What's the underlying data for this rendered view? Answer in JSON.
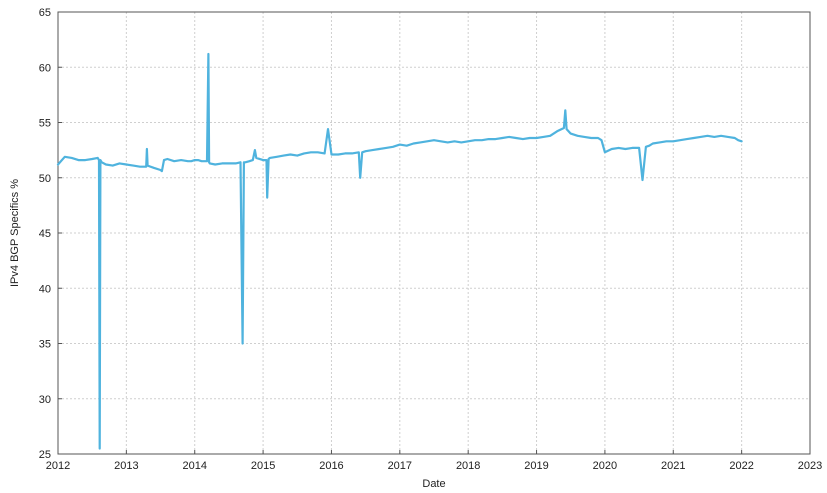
{
  "chart_data": {
    "type": "line",
    "title": "",
    "xlabel": "Date",
    "ylabel": "IPv4 BGP Specifics %",
    "xlim": [
      2012,
      2023
    ],
    "ylim": [
      25,
      65
    ],
    "x_ticks": [
      "2012",
      "2013",
      "2014",
      "2015",
      "2016",
      "2017",
      "2018",
      "2019",
      "2020",
      "2021",
      "2022",
      "2023"
    ],
    "y_ticks": [
      "25",
      "30",
      "35",
      "40",
      "45",
      "50",
      "55",
      "60",
      "65"
    ],
    "grid": true,
    "legend": "none",
    "colors": {
      "series": "#4fb3de",
      "grid": "#cfcfcf",
      "frame": "#555555"
    },
    "series": [
      {
        "x": [
          2012.0,
          2012.1,
          2012.2,
          2012.3,
          2012.4,
          2012.5,
          2012.58,
          2012.6,
          2012.61,
          2012.62,
          2012.64,
          2012.7,
          2012.8,
          2012.9,
          2013.0,
          2013.1,
          2013.2,
          2013.29,
          2013.3,
          2013.31,
          2013.4,
          2013.5,
          2013.52,
          2013.55,
          2013.6,
          2013.7,
          2013.8,
          2013.9,
          2013.95,
          2014.0,
          2014.05,
          2014.1,
          2014.18,
          2014.2,
          2014.21,
          2014.22,
          2014.3,
          2014.4,
          2014.5,
          2014.6,
          2014.67,
          2014.7,
          2014.72,
          2014.74,
          2014.8,
          2014.85,
          2014.88,
          2014.9,
          2015.0,
          2015.05,
          2015.06,
          2015.08,
          2015.1,
          2015.2,
          2015.3,
          2015.4,
          2015.5,
          2015.6,
          2015.7,
          2015.8,
          2015.9,
          2015.95,
          2016.0,
          2016.1,
          2016.2,
          2016.3,
          2016.4,
          2016.42,
          2016.45,
          2016.5,
          2016.6,
          2016.7,
          2016.8,
          2016.9,
          2017.0,
          2017.1,
          2017.2,
          2017.3,
          2017.4,
          2017.5,
          2017.6,
          2017.7,
          2017.8,
          2017.9,
          2018.0,
          2018.1,
          2018.2,
          2018.3,
          2018.4,
          2018.5,
          2018.6,
          2018.7,
          2018.8,
          2018.9,
          2019.0,
          2019.1,
          2019.2,
          2019.3,
          2019.4,
          2019.42,
          2019.44,
          2019.5,
          2019.6,
          2019.7,
          2019.8,
          2019.9,
          2019.95,
          2020.0,
          2020.1,
          2020.2,
          2020.3,
          2020.4,
          2020.5,
          2020.55,
          2020.6,
          2020.65,
          2020.7,
          2020.8,
          2020.9,
          2021.0,
          2021.1,
          2021.2,
          2021.3,
          2021.4,
          2021.5,
          2021.6,
          2021.7,
          2021.8,
          2021.9,
          2021.95,
          2022.0
        ],
        "y": [
          51.2,
          51.9,
          51.8,
          51.6,
          51.6,
          51.7,
          51.8,
          51.6,
          25.5,
          51.6,
          51.4,
          51.2,
          51.1,
          51.3,
          51.2,
          51.1,
          51.0,
          51.0,
          52.6,
          51.1,
          50.9,
          50.7,
          50.6,
          51.6,
          51.7,
          51.5,
          51.6,
          51.5,
          51.5,
          51.6,
          51.6,
          51.5,
          51.5,
          61.2,
          51.4,
          51.3,
          51.2,
          51.3,
          51.3,
          51.3,
          51.4,
          35.0,
          51.4,
          51.4,
          51.5,
          51.6,
          52.5,
          51.8,
          51.6,
          51.6,
          48.2,
          51.7,
          51.8,
          51.9,
          52.0,
          52.1,
          52.0,
          52.2,
          52.3,
          52.3,
          52.2,
          54.4,
          52.1,
          52.1,
          52.2,
          52.2,
          52.3,
          50.0,
          52.3,
          52.4,
          52.5,
          52.6,
          52.7,
          52.8,
          53.0,
          52.9,
          53.1,
          53.2,
          53.3,
          53.4,
          53.3,
          53.2,
          53.3,
          53.2,
          53.3,
          53.4,
          53.4,
          53.5,
          53.5,
          53.6,
          53.7,
          53.6,
          53.5,
          53.6,
          53.6,
          53.7,
          53.8,
          54.2,
          54.5,
          56.1,
          54.4,
          54.0,
          53.8,
          53.7,
          53.6,
          53.6,
          53.4,
          52.3,
          52.6,
          52.7,
          52.6,
          52.7,
          52.7,
          49.8,
          52.8,
          52.9,
          53.1,
          53.2,
          53.3,
          53.3,
          53.4,
          53.5,
          53.6,
          53.7,
          53.8,
          53.7,
          53.8,
          53.7,
          53.6,
          53.4,
          53.3
        ]
      }
    ]
  }
}
